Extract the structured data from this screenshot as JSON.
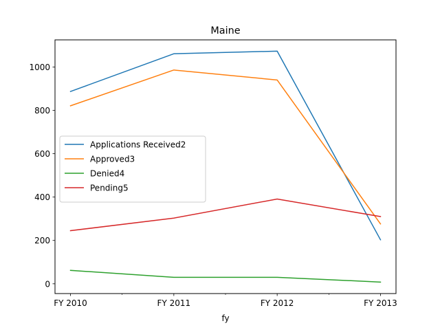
{
  "chart_data": {
    "type": "line",
    "title": "Maine",
    "xlabel": "fy",
    "ylabel": "",
    "categories": [
      "FY 2010",
      "FY 2011",
      "FY 2012",
      "FY 2013"
    ],
    "ylim": [
      -45,
      1125
    ],
    "yticks": [
      0,
      200,
      400,
      600,
      800,
      1000
    ],
    "grid": false,
    "legend_position": "center-left",
    "series": [
      {
        "name": "Applications Received2",
        "color": "#1f77b4",
        "values": [
          887,
          1061,
          1073,
          203
        ]
      },
      {
        "name": "Approved3",
        "color": "#ff7f0e",
        "values": [
          821,
          986,
          940,
          276
        ]
      },
      {
        "name": "Denied4",
        "color": "#2ca02c",
        "values": [
          62,
          30,
          30,
          8
        ]
      },
      {
        "name": "Pending5",
        "color": "#d62728",
        "values": [
          245,
          303,
          391,
          310
        ]
      }
    ]
  }
}
